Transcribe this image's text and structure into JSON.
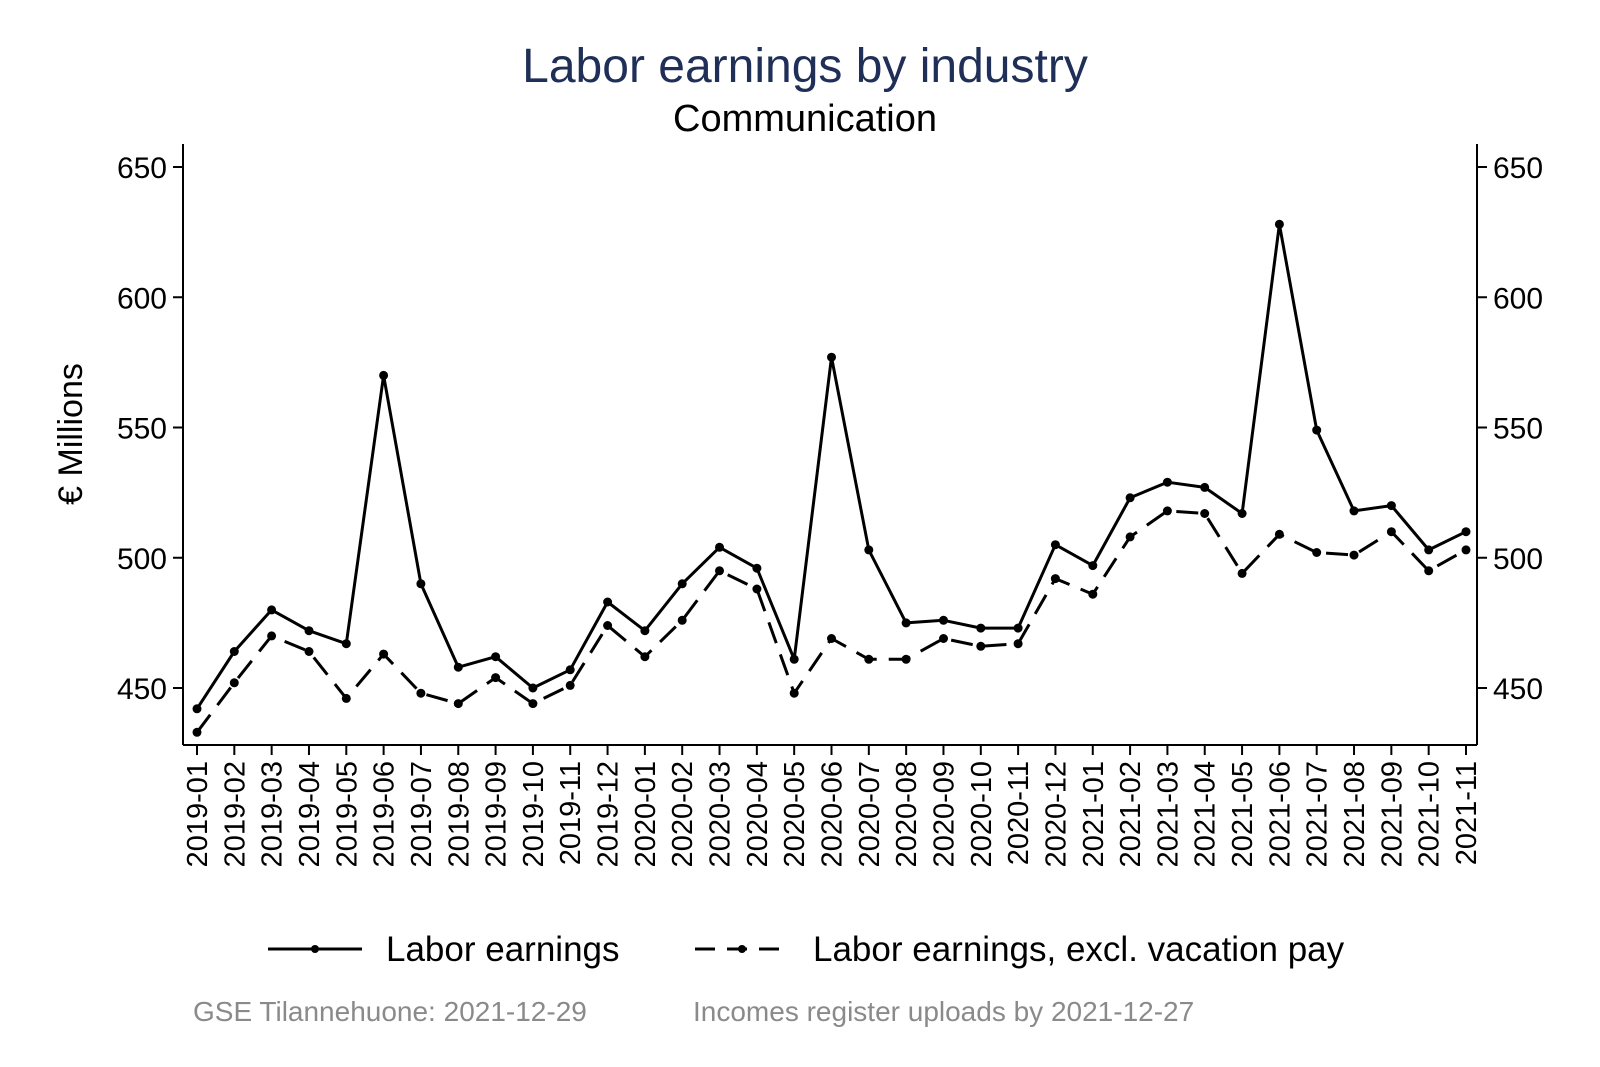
{
  "chart_data": {
    "type": "line",
    "title": "Labor earnings by industry",
    "subtitle": "Communication",
    "ylabel": "€ Millions",
    "xlabel": "",
    "ylim": [
      430,
      657
    ],
    "yticks": [
      450,
      500,
      550,
      600,
      650
    ],
    "y_axis_both_sides": true,
    "grid": false,
    "legend_position": "bottom",
    "colors": {
      "title": "#1f2f57",
      "series": "#000000",
      "footnote": "#8a8a8a"
    },
    "categories": [
      "2019-01",
      "2019-02",
      "2019-03",
      "2019-04",
      "2019-05",
      "2019-06",
      "2019-07",
      "2019-08",
      "2019-09",
      "2019-10",
      "2019-11",
      "2019-12",
      "2020-01",
      "2020-02",
      "2020-03",
      "2020-04",
      "2020-05",
      "2020-06",
      "2020-07",
      "2020-08",
      "2020-09",
      "2020-10",
      "2020-11",
      "2020-12",
      "2021-01",
      "2021-02",
      "2021-03",
      "2021-04",
      "2021-05",
      "2021-06",
      "2021-07",
      "2021-08",
      "2021-09",
      "2021-10",
      "2021-11"
    ],
    "series": [
      {
        "name": "Labor earnings",
        "style": "solid",
        "values": [
          442,
          464,
          480,
          472,
          467,
          570,
          490,
          458,
          462,
          450,
          457,
          483,
          472,
          490,
          504,
          496,
          461,
          577,
          503,
          475,
          476,
          473,
          473,
          505,
          497,
          523,
          529,
          527,
          517,
          628,
          549,
          518,
          520,
          503,
          510
        ]
      },
      {
        "name": "Labor earnings, excl. vacation pay",
        "style": "dashed",
        "values": [
          433,
          452,
          470,
          464,
          446,
          463,
          448,
          444,
          454,
          444,
          451,
          474,
          462,
          476,
          495,
          488,
          448,
          469,
          461,
          461,
          469,
          466,
          467,
          492,
          486,
          508,
          518,
          517,
          494,
          509,
          502,
          501,
          510,
          495,
          503
        ]
      }
    ]
  },
  "footnotes": {
    "left": "GSE Tilannehuone: 2021-12-29",
    "right": "Incomes register uploads by 2021-12-27"
  }
}
